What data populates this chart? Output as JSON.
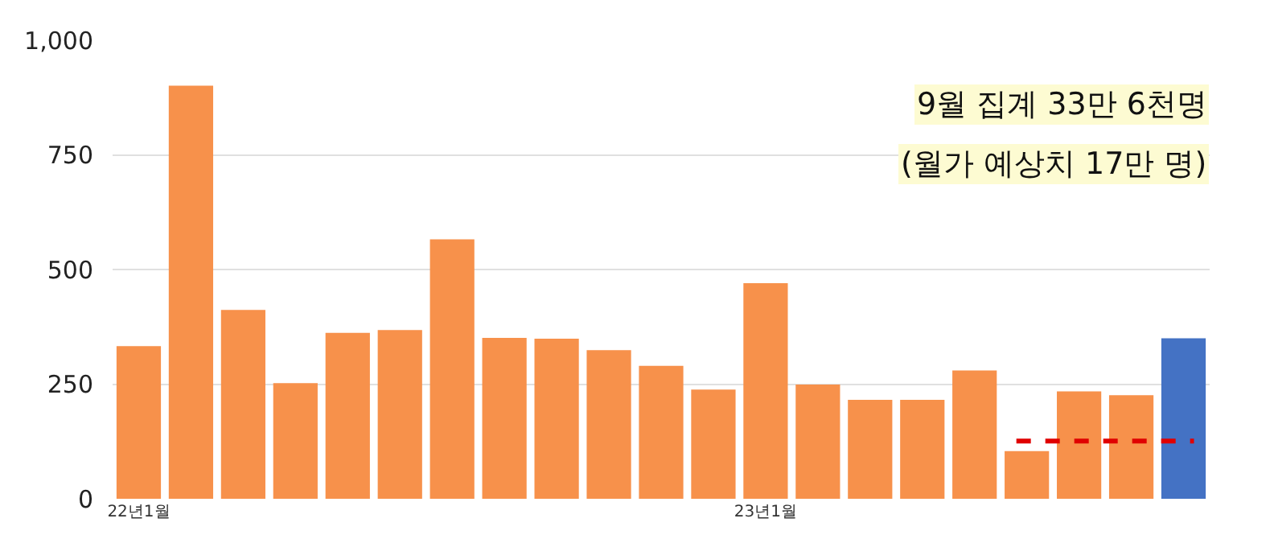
{
  "chart_data": {
    "type": "bar",
    "categories": [
      "22년1월",
      null,
      null,
      null,
      null,
      null,
      null,
      null,
      null,
      null,
      null,
      null,
      "23년1월",
      null,
      null,
      null,
      null,
      null,
      null,
      null,
      null
    ],
    "values": [
      333,
      901,
      412,
      252,
      362,
      368,
      566,
      351,
      349,
      324,
      290,
      238,
      470,
      249,
      216,
      216,
      280,
      104,
      234,
      226,
      350
    ],
    "colors": [
      "#f7914b",
      "#f7914b",
      "#f7914b",
      "#f7914b",
      "#f7914b",
      "#f7914b",
      "#f7914b",
      "#f7914b",
      "#f7914b",
      "#f7914b",
      "#f7914b",
      "#f7914b",
      "#f7914b",
      "#f7914b",
      "#f7914b",
      "#f7914b",
      "#f7914b",
      "#f7914b",
      "#f7914b",
      "#f7914b",
      "#4472c4"
    ],
    "ylim": [
      0,
      1000
    ],
    "yticks": [
      0,
      250,
      500,
      750,
      {
        "value": 1000,
        "label": "1,000"
      }
    ],
    "grid": "y",
    "legend": false,
    "ref_lines": [
      {
        "axis": "y",
        "value": 126,
        "color": "#e00000",
        "line_style": "dashed"
      }
    ],
    "annotations": [
      "9월 집계 33만 6천명",
      "(월가 예상치 17만 명)"
    ]
  }
}
